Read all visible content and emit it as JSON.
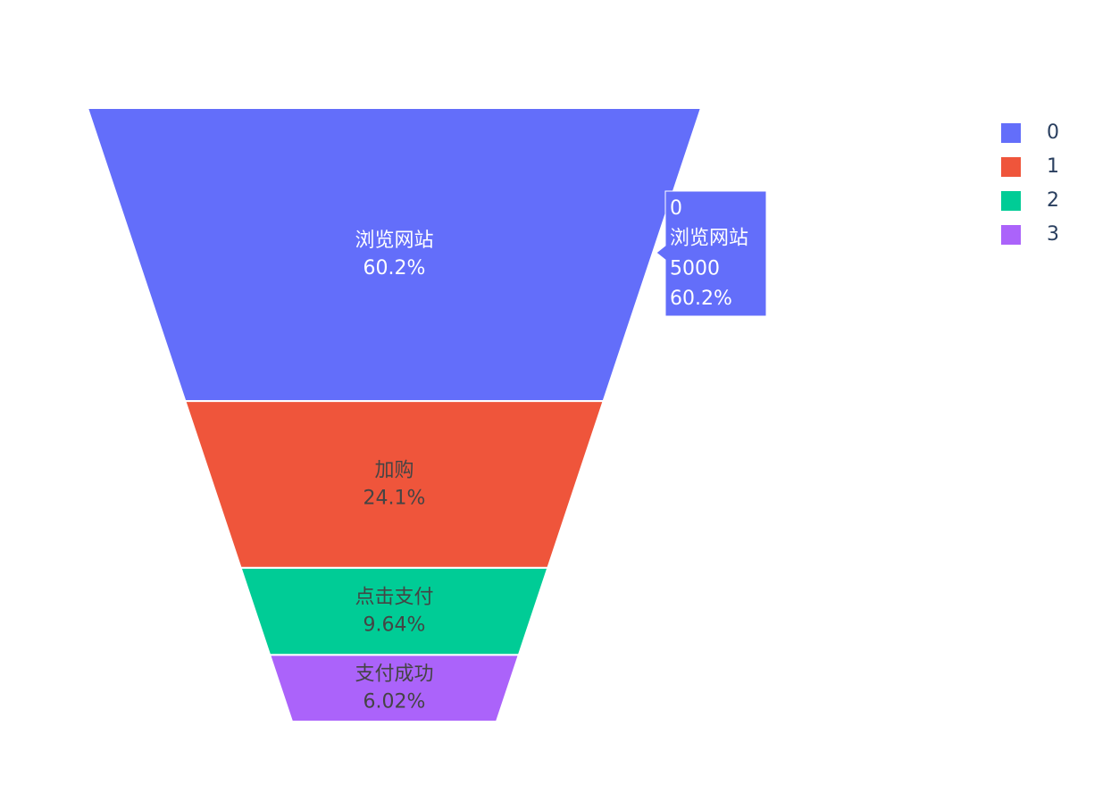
{
  "chart_data": {
    "type": "funnelarea",
    "labels": [
      "0",
      "1",
      "2",
      "3"
    ],
    "text": [
      "浏览网站",
      "加购",
      "点击支付",
      "支付成功"
    ],
    "values": [
      5000,
      2000,
      800,
      500
    ],
    "percent_labels": [
      "60.2%",
      "24.1%",
      "9.64%",
      "6.02%"
    ],
    "colors": [
      "#636efa",
      "#ef553b",
      "#00cc96",
      "#ab63fa"
    ],
    "legend": "top-right"
  }
}
